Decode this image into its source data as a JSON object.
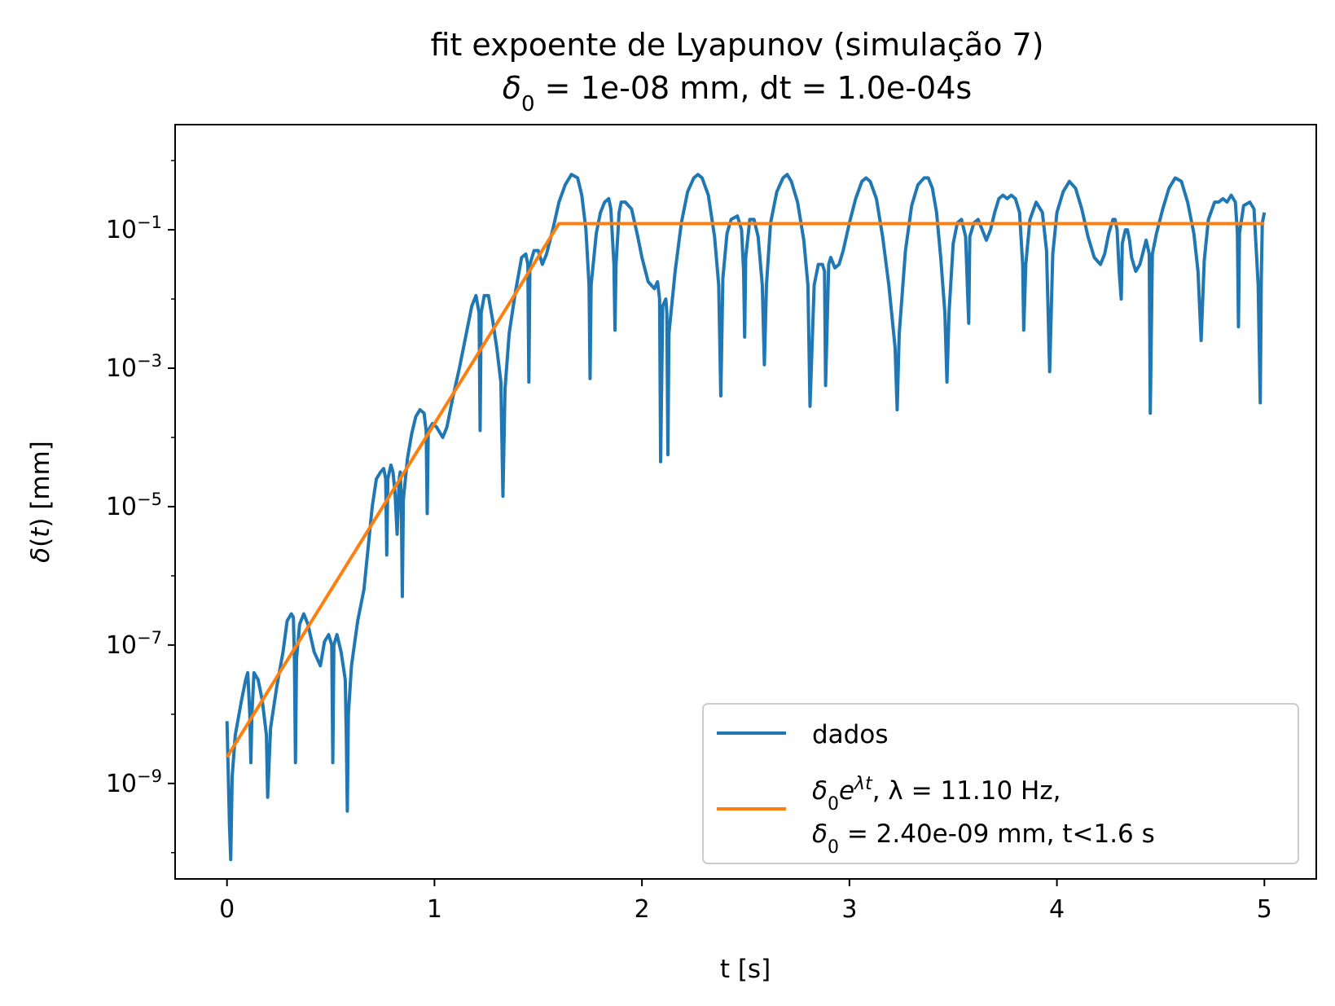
{
  "chart_data": {
    "type": "line",
    "title": "fit expoente de Lyapunov (simulação 7)",
    "subtitle": {
      "symbol": "δ",
      "subscript": "0",
      "text": " = 1e-08 mm, dt = 1.0e-04s"
    },
    "xlabel": "t [s]",
    "ylabel": {
      "symbol": "δ",
      "var": "t",
      "unit": " [mm]"
    },
    "xlim": [
      -0.25,
      5.25
    ],
    "ylim_log10": [
      -10.38,
      0.52
    ],
    "yscale": "log",
    "x_ticks": [
      0,
      1,
      2,
      3,
      4,
      5
    ],
    "x_tick_labels": [
      "0",
      "1",
      "2",
      "3",
      "4",
      "5"
    ],
    "y_tick_exponents": [
      -1,
      -3,
      -5,
      -7,
      -9
    ],
    "y_tick_labels": [
      "10",
      "10",
      "10",
      "10",
      "10"
    ],
    "y_tick_superscripts": [
      "−1",
      "−3",
      "−5",
      "−7",
      "−9"
    ],
    "grid": false,
    "legend_position": "lower-right",
    "series": [
      {
        "name": "dados",
        "color": "#1f77b4",
        "points_log10": [
          [
            0.0,
            -8.1
          ],
          [
            0.012,
            -9.6
          ],
          [
            0.018,
            -10.1
          ],
          [
            0.025,
            -8.9
          ],
          [
            0.04,
            -8.3
          ],
          [
            0.07,
            -7.8
          ],
          [
            0.09,
            -7.5
          ],
          [
            0.1,
            -7.4
          ],
          [
            0.11,
            -8.0
          ],
          [
            0.115,
            -8.7
          ],
          [
            0.12,
            -8.0
          ],
          [
            0.13,
            -7.4
          ],
          [
            0.15,
            -7.5
          ],
          [
            0.17,
            -7.8
          ],
          [
            0.19,
            -8.3
          ],
          [
            0.196,
            -9.2
          ],
          [
            0.21,
            -8.2
          ],
          [
            0.24,
            -7.6
          ],
          [
            0.27,
            -7.1
          ],
          [
            0.29,
            -6.65
          ],
          [
            0.31,
            -6.55
          ],
          [
            0.32,
            -6.6
          ],
          [
            0.325,
            -7.2
          ],
          [
            0.33,
            -8.7
          ],
          [
            0.335,
            -7.2
          ],
          [
            0.35,
            -6.7
          ],
          [
            0.37,
            -6.55
          ],
          [
            0.39,
            -6.7
          ],
          [
            0.42,
            -7.1
          ],
          [
            0.45,
            -7.3
          ],
          [
            0.47,
            -6.95
          ],
          [
            0.49,
            -6.85
          ],
          [
            0.505,
            -7.0
          ],
          [
            0.51,
            -8.7
          ],
          [
            0.515,
            -7.0
          ],
          [
            0.53,
            -6.85
          ],
          [
            0.55,
            -7.1
          ],
          [
            0.57,
            -7.5
          ],
          [
            0.575,
            -8.3
          ],
          [
            0.58,
            -9.4
          ],
          [
            0.585,
            -8.0
          ],
          [
            0.6,
            -7.3
          ],
          [
            0.63,
            -6.65
          ],
          [
            0.66,
            -6.2
          ],
          [
            0.68,
            -5.6
          ],
          [
            0.7,
            -5.0
          ],
          [
            0.72,
            -4.6
          ],
          [
            0.74,
            -4.5
          ],
          [
            0.755,
            -4.45
          ],
          [
            0.765,
            -4.6
          ],
          [
            0.77,
            -5.7
          ],
          [
            0.775,
            -4.6
          ],
          [
            0.79,
            -4.4
          ],
          [
            0.8,
            -4.5
          ],
          [
            0.81,
            -4.8
          ],
          [
            0.82,
            -5.4
          ],
          [
            0.83,
            -4.6
          ],
          [
            0.835,
            -4.5
          ],
          [
            0.84,
            -4.9
          ],
          [
            0.845,
            -6.3
          ],
          [
            0.85,
            -4.9
          ],
          [
            0.87,
            -4.3
          ],
          [
            0.89,
            -3.95
          ],
          [
            0.91,
            -3.7
          ],
          [
            0.93,
            -3.6
          ],
          [
            0.95,
            -3.65
          ],
          [
            0.96,
            -3.9
          ],
          [
            0.965,
            -5.1
          ],
          [
            0.97,
            -3.9
          ],
          [
            0.99,
            -3.8
          ],
          [
            1.01,
            -3.85
          ],
          [
            1.04,
            -4.0
          ],
          [
            1.06,
            -3.85
          ],
          [
            1.09,
            -3.4
          ],
          [
            1.12,
            -3.0
          ],
          [
            1.15,
            -2.55
          ],
          [
            1.18,
            -2.1
          ],
          [
            1.2,
            -1.95
          ],
          [
            1.215,
            -2.2
          ],
          [
            1.22,
            -3.9
          ],
          [
            1.225,
            -2.2
          ],
          [
            1.24,
            -1.95
          ],
          [
            1.26,
            -1.95
          ],
          [
            1.28,
            -2.3
          ],
          [
            1.3,
            -2.7
          ],
          [
            1.32,
            -3.2
          ],
          [
            1.33,
            -4.85
          ],
          [
            1.34,
            -3.3
          ],
          [
            1.36,
            -2.5
          ],
          [
            1.39,
            -1.9
          ],
          [
            1.42,
            -1.4
          ],
          [
            1.44,
            -1.35
          ],
          [
            1.45,
            -1.5
          ],
          [
            1.455,
            -3.2
          ],
          [
            1.46,
            -1.5
          ],
          [
            1.48,
            -1.3
          ],
          [
            1.5,
            -1.3
          ],
          [
            1.52,
            -1.5
          ],
          [
            1.54,
            -1.35
          ],
          [
            1.57,
            -1.0
          ],
          [
            1.6,
            -0.6
          ],
          [
            1.63,
            -0.35
          ],
          [
            1.66,
            -0.2
          ],
          [
            1.69,
            -0.25
          ],
          [
            1.71,
            -0.5
          ],
          [
            1.73,
            -1.0
          ],
          [
            1.745,
            -1.8
          ],
          [
            1.75,
            -3.15
          ],
          [
            1.755,
            -1.8
          ],
          [
            1.78,
            -1.05
          ],
          [
            1.8,
            -0.75
          ],
          [
            1.82,
            -0.6
          ],
          [
            1.84,
            -0.55
          ],
          [
            1.85,
            -0.7
          ],
          [
            1.865,
            -1.5
          ],
          [
            1.87,
            -2.45
          ],
          [
            1.875,
            -1.5
          ],
          [
            1.89,
            -0.75
          ],
          [
            1.9,
            -0.6
          ],
          [
            1.92,
            -0.6
          ],
          [
            1.95,
            -0.7
          ],
          [
            1.98,
            -1.1
          ],
          [
            2.0,
            -1.4
          ],
          [
            2.03,
            -1.75
          ],
          [
            2.06,
            -1.85
          ],
          [
            2.075,
            -1.75
          ],
          [
            2.085,
            -2.0
          ],
          [
            2.09,
            -4.35
          ],
          [
            2.1,
            -2.1
          ],
          [
            2.115,
            -2.0
          ],
          [
            2.12,
            -2.2
          ],
          [
            2.125,
            -4.25
          ],
          [
            2.13,
            -2.5
          ],
          [
            2.16,
            -1.6
          ],
          [
            2.19,
            -0.9
          ],
          [
            2.22,
            -0.45
          ],
          [
            2.25,
            -0.25
          ],
          [
            2.27,
            -0.2
          ],
          [
            2.29,
            -0.25
          ],
          [
            2.32,
            -0.5
          ],
          [
            2.35,
            -1.1
          ],
          [
            2.37,
            -1.8
          ],
          [
            2.38,
            -3.4
          ],
          [
            2.39,
            -1.7
          ],
          [
            2.41,
            -1.05
          ],
          [
            2.43,
            -0.85
          ],
          [
            2.46,
            -0.8
          ],
          [
            2.48,
            -1.0
          ],
          [
            2.49,
            -1.6
          ],
          [
            2.495,
            -2.55
          ],
          [
            2.5,
            -1.4
          ],
          [
            2.52,
            -0.85
          ],
          [
            2.54,
            -0.85
          ],
          [
            2.56,
            -1.1
          ],
          [
            2.58,
            -1.8
          ],
          [
            2.59,
            -2.95
          ],
          [
            2.6,
            -1.8
          ],
          [
            2.62,
            -0.9
          ],
          [
            2.65,
            -0.45
          ],
          [
            2.68,
            -0.25
          ],
          [
            2.7,
            -0.2
          ],
          [
            2.72,
            -0.3
          ],
          [
            2.75,
            -0.6
          ],
          [
            2.78,
            -1.15
          ],
          [
            2.8,
            -1.8
          ],
          [
            2.81,
            -3.55
          ],
          [
            2.83,
            -1.8
          ],
          [
            2.85,
            -1.5
          ],
          [
            2.87,
            -1.5
          ],
          [
            2.88,
            -1.6
          ],
          [
            2.885,
            -3.25
          ],
          [
            2.9,
            -1.5
          ],
          [
            2.91,
            -1.4
          ],
          [
            2.93,
            -1.55
          ],
          [
            2.95,
            -1.5
          ],
          [
            2.97,
            -1.3
          ],
          [
            3.0,
            -0.9
          ],
          [
            3.03,
            -0.55
          ],
          [
            3.06,
            -0.3
          ],
          [
            3.08,
            -0.25
          ],
          [
            3.1,
            -0.3
          ],
          [
            3.13,
            -0.55
          ],
          [
            3.16,
            -1.1
          ],
          [
            3.19,
            -1.8
          ],
          [
            3.22,
            -2.7
          ],
          [
            3.23,
            -3.6
          ],
          [
            3.24,
            -2.5
          ],
          [
            3.27,
            -1.3
          ],
          [
            3.3,
            -0.65
          ],
          [
            3.33,
            -0.35
          ],
          [
            3.36,
            -0.25
          ],
          [
            3.38,
            -0.25
          ],
          [
            3.4,
            -0.4
          ],
          [
            3.42,
            -0.75
          ],
          [
            3.44,
            -1.4
          ],
          [
            3.46,
            -2.2
          ],
          [
            3.47,
            -3.2
          ],
          [
            3.48,
            -2.2
          ],
          [
            3.5,
            -1.2
          ],
          [
            3.52,
            -0.9
          ],
          [
            3.54,
            -0.85
          ],
          [
            3.56,
            -1.1
          ],
          [
            3.575,
            -2.35
          ],
          [
            3.58,
            -1.1
          ],
          [
            3.6,
            -0.9
          ],
          [
            3.62,
            -0.85
          ],
          [
            3.64,
            -1.0
          ],
          [
            3.66,
            -1.15
          ],
          [
            3.68,
            -1.0
          ],
          [
            3.7,
            -0.75
          ],
          [
            3.72,
            -0.55
          ],
          [
            3.74,
            -0.5
          ],
          [
            3.76,
            -0.55
          ],
          [
            3.78,
            -0.5
          ],
          [
            3.8,
            -0.55
          ],
          [
            3.82,
            -0.75
          ],
          [
            3.835,
            -1.5
          ],
          [
            3.84,
            -2.45
          ],
          [
            3.85,
            -1.5
          ],
          [
            3.87,
            -0.85
          ],
          [
            3.9,
            -0.6
          ],
          [
            3.93,
            -0.75
          ],
          [
            3.95,
            -1.3
          ],
          [
            3.965,
            -3.05
          ],
          [
            3.98,
            -1.35
          ],
          [
            4.0,
            -0.75
          ],
          [
            4.03,
            -0.45
          ],
          [
            4.06,
            -0.3
          ],
          [
            4.09,
            -0.4
          ],
          [
            4.12,
            -0.7
          ],
          [
            4.15,
            -1.1
          ],
          [
            4.18,
            -1.4
          ],
          [
            4.21,
            -1.5
          ],
          [
            4.23,
            -1.35
          ],
          [
            4.25,
            -1.05
          ],
          [
            4.27,
            -0.85
          ],
          [
            4.28,
            -0.85
          ],
          [
            4.29,
            -1.0
          ],
          [
            4.3,
            -1.6
          ],
          [
            4.31,
            -2.0
          ],
          [
            4.315,
            -1.2
          ],
          [
            4.33,
            -1.0
          ],
          [
            4.34,
            -1.0
          ],
          [
            4.35,
            -1.15
          ],
          [
            4.36,
            -1.4
          ],
          [
            4.38,
            -1.6
          ],
          [
            4.4,
            -1.5
          ],
          [
            4.43,
            -1.15
          ],
          [
            4.445,
            -1.35
          ],
          [
            4.45,
            -3.65
          ],
          [
            4.46,
            -1.35
          ],
          [
            4.48,
            -1.05
          ],
          [
            4.51,
            -0.7
          ],
          [
            4.54,
            -0.4
          ],
          [
            4.57,
            -0.25
          ],
          [
            4.6,
            -0.3
          ],
          [
            4.63,
            -0.6
          ],
          [
            4.66,
            -1.05
          ],
          [
            4.68,
            -1.6
          ],
          [
            4.695,
            -2.6
          ],
          [
            4.71,
            -1.45
          ],
          [
            4.73,
            -0.85
          ],
          [
            4.76,
            -0.6
          ],
          [
            4.78,
            -0.6
          ],
          [
            4.8,
            -0.55
          ],
          [
            4.82,
            -0.6
          ],
          [
            4.84,
            -0.5
          ],
          [
            4.86,
            -0.6
          ],
          [
            4.87,
            -1.05
          ],
          [
            4.875,
            -2.4
          ],
          [
            4.88,
            -1.05
          ],
          [
            4.9,
            -0.65
          ],
          [
            4.93,
            -0.6
          ],
          [
            4.95,
            -0.7
          ],
          [
            4.97,
            -1.8
          ],
          [
            4.98,
            -3.5
          ],
          [
            4.985,
            -1.7
          ],
          [
            4.99,
            -0.9
          ],
          [
            5.0,
            -0.75
          ]
        ]
      },
      {
        "name_parts": {
          "line1_delta": "δ",
          "line1_sub": "0",
          "line1_e": "e",
          "line1_exp": "λt",
          "line1_rest": ", λ = 11.10 Hz,",
          "line2_delta": "δ",
          "line2_sub": "0",
          "line2_rest": " = 2.40e-09 mm,  t<1.6 s"
        },
        "color": "#ff7f0e",
        "fit": {
          "lambda_hz": 11.1,
          "delta0_mm": 2.4e-09,
          "t_max": 1.6,
          "points_log10": [
            [
              0.0,
              -8.62
            ],
            [
              1.6,
              -0.91
            ],
            [
              5.0,
              -0.91
            ]
          ]
        }
      }
    ]
  }
}
